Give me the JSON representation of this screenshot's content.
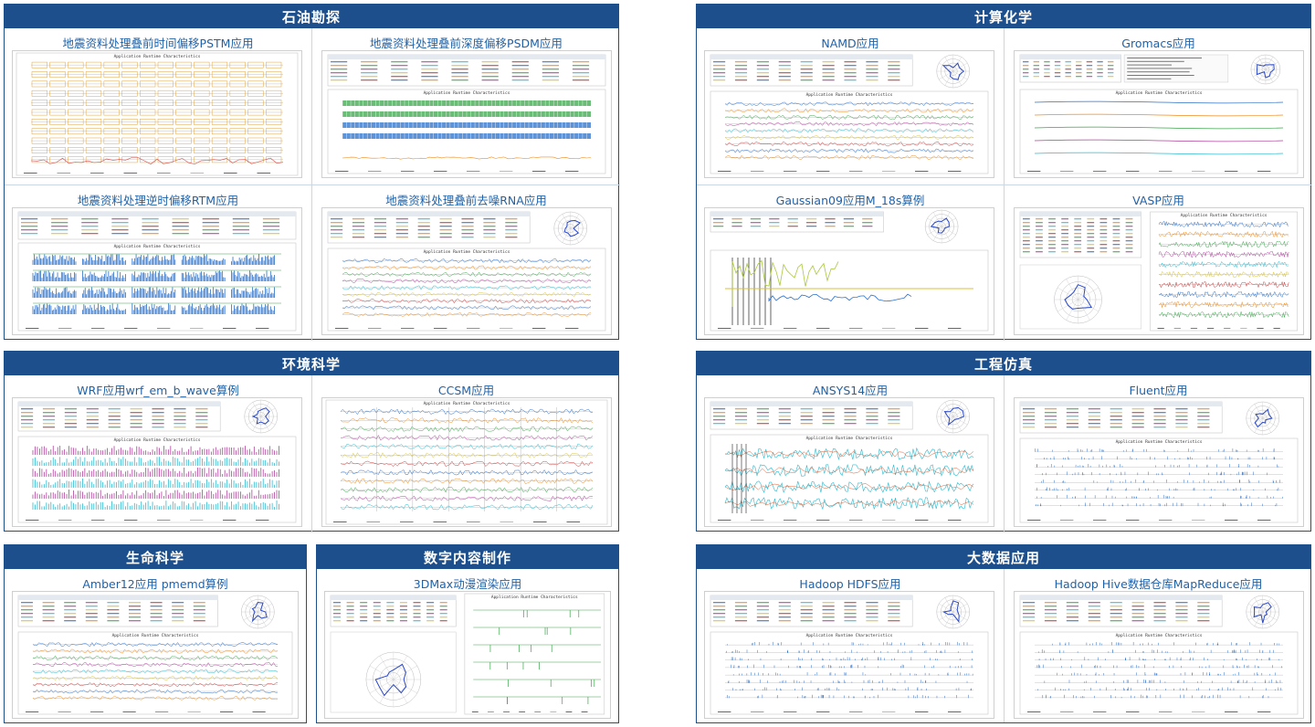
{
  "sections": {
    "oil": {
      "title": "石油勘探",
      "cells": [
        {
          "title": "地震资料处理叠前时间偏移PSTM应用",
          "chart_title": "Application Runtime Characteristics"
        },
        {
          "title": "地震资料处理叠前深度偏移PSDM应用",
          "chart_title": "Application Runtime Characteristics"
        },
        {
          "title": "地震资料处理逆时偏移RTM应用",
          "chart_title": "Application Runtime Characteristics"
        },
        {
          "title": "地震资料处理叠前去噪RNA应用",
          "chart_title": "Application Runtime Characteristics"
        }
      ]
    },
    "chem": {
      "title": "计算化学",
      "cells": [
        {
          "title": "NAMD应用",
          "chart_title": "Application Runtime Characteristics"
        },
        {
          "title": "Gromacs应用",
          "chart_title": "Application Runtime Characteristics"
        },
        {
          "title": "Gaussian09应用M_18s算例",
          "chart_title": ""
        },
        {
          "title": "VASP应用",
          "chart_title": "Application Runtime Characteristics"
        }
      ]
    },
    "env": {
      "title": "环境科学",
      "cells": [
        {
          "title": "WRF应用wrf_em_b_wave算例",
          "chart_title": "Application Runtime Characteristics"
        },
        {
          "title": "CCSM应用",
          "chart_title": "Application Runtime Characteristics"
        }
      ]
    },
    "eng": {
      "title": "工程仿真",
      "cells": [
        {
          "title": "ANSYS14应用",
          "chart_title": "Application Runtime Characteristics"
        },
        {
          "title": "Fluent应用",
          "chart_title": "Application Runtime Characteristics"
        }
      ]
    },
    "life": {
      "title": "生命科学",
      "cells": [
        {
          "title": "Amber12应用 pmemd算例",
          "chart_title": "Application Runtime Characteristics"
        }
      ]
    },
    "digital": {
      "title": "数字内容制作",
      "cells": [
        {
          "title": "3DMax动漫渲染应用",
          "chart_title": "Application Runtime Characteristics"
        }
      ]
    },
    "bigdata": {
      "title": "大数据应用",
      "cells": [
        {
          "title": "Hadoop HDFS应用",
          "chart_title": "Application Runtime Characteristics"
        },
        {
          "title": "Hadoop Hive数据仓库MapReduce应用",
          "chart_title": "Application Runtime Characteristics"
        }
      ]
    }
  },
  "colors": {
    "header_bg": "#1c4f8c",
    "title_text": "#1f62a8",
    "series": [
      "#2a6fc9",
      "#f08a1c",
      "#3aa64a",
      "#b0409c",
      "#2bbad0",
      "#d8c23a",
      "#c83a3a"
    ]
  }
}
